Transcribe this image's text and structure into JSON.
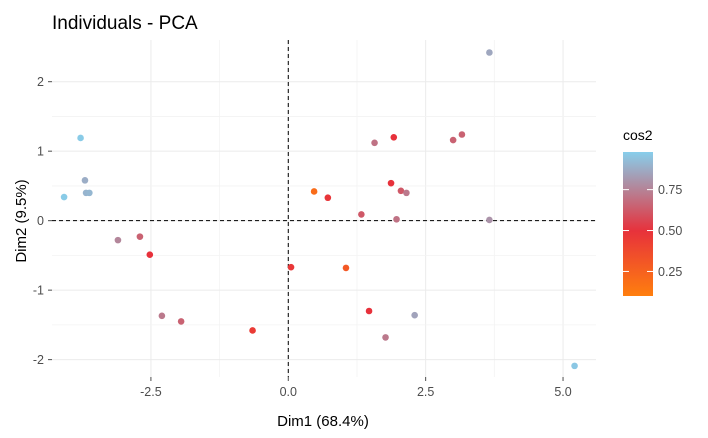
{
  "chart_data": {
    "type": "scatter",
    "title": "Individuals - PCA",
    "xlabel": "Dim1 (68.4%)",
    "ylabel": "Dim2 (9.5%)",
    "xlim": [
      -4.3,
      5.6
    ],
    "ylim": [
      -2.25,
      2.6
    ],
    "x_ticks": [
      -2.5,
      0.0,
      2.5,
      5.0
    ],
    "x_tick_labels": [
      "-2.5",
      "0.0",
      "2.5",
      "5.0"
    ],
    "y_ticks": [
      -2,
      -1,
      0,
      1,
      2
    ],
    "y_tick_labels": [
      "-2",
      "-1",
      "0",
      "1",
      "2"
    ],
    "grid": true,
    "reference_lines": {
      "x": 0,
      "y": 0,
      "style": "dashed"
    },
    "legend": {
      "title": "cos2",
      "placement": "right",
      "range": [
        0.1,
        0.98
      ],
      "ticks": [
        0.25,
        0.5,
        0.75
      ],
      "tick_labels": [
        "0.25",
        "0.50",
        "0.75"
      ],
      "colors": {
        "low": "#FF7F0E",
        "mid": "#E7313B",
        "high": "#87CEEB",
        "midpoint": 0.5
      }
    },
    "points": [
      {
        "x": -3.78,
        "y": 1.19,
        "cos2": 0.97
      },
      {
        "x": -3.7,
        "y": 0.58,
        "cos2": 0.88
      },
      {
        "x": -3.68,
        "y": 0.4,
        "cos2": 0.9
      },
      {
        "x": -3.62,
        "y": 0.4,
        "cos2": 0.91
      },
      {
        "x": -4.08,
        "y": 0.34,
        "cos2": 0.97
      },
      {
        "x": -3.1,
        "y": -0.28,
        "cos2": 0.76
      },
      {
        "x": -2.7,
        "y": -0.23,
        "cos2": 0.65
      },
      {
        "x": -2.52,
        "y": -0.49,
        "cos2": 0.5
      },
      {
        "x": -2.3,
        "y": -1.37,
        "cos2": 0.72
      },
      {
        "x": -1.95,
        "y": -1.45,
        "cos2": 0.65
      },
      {
        "x": -0.65,
        "y": -1.58,
        "cos2": 0.45
      },
      {
        "x": 0.05,
        "y": -0.67,
        "cos2": 0.47
      },
      {
        "x": 0.47,
        "y": 0.42,
        "cos2": 0.2
      },
      {
        "x": 0.72,
        "y": 0.33,
        "cos2": 0.48
      },
      {
        "x": 1.05,
        "y": -0.68,
        "cos2": 0.3
      },
      {
        "x": 1.33,
        "y": 0.09,
        "cos2": 0.62
      },
      {
        "x": 1.47,
        "y": -1.3,
        "cos2": 0.5
      },
      {
        "x": 1.57,
        "y": 1.12,
        "cos2": 0.7
      },
      {
        "x": 1.77,
        "y": -1.68,
        "cos2": 0.72
      },
      {
        "x": 1.87,
        "y": 0.54,
        "cos2": 0.5
      },
      {
        "x": 1.92,
        "y": 1.2,
        "cos2": 0.5
      },
      {
        "x": 1.97,
        "y": 0.02,
        "cos2": 0.7
      },
      {
        "x": 2.05,
        "y": 0.43,
        "cos2": 0.62
      },
      {
        "x": 2.15,
        "y": 0.4,
        "cos2": 0.72
      },
      {
        "x": 2.3,
        "y": -1.36,
        "cos2": 0.85
      },
      {
        "x": 3.0,
        "y": 1.16,
        "cos2": 0.65
      },
      {
        "x": 3.16,
        "y": 1.24,
        "cos2": 0.65
      },
      {
        "x": 3.66,
        "y": 2.42,
        "cos2": 0.86
      },
      {
        "x": 3.66,
        "y": 0.01,
        "cos2": 0.8
      },
      {
        "x": 5.21,
        "y": -2.09,
        "cos2": 0.96
      }
    ]
  }
}
